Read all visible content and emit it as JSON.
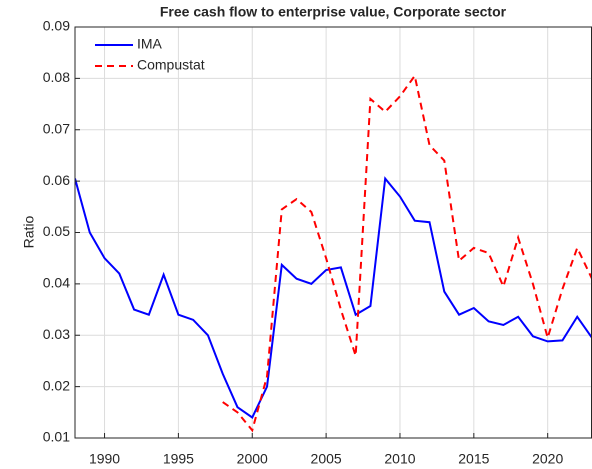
{
  "chart_data": {
    "type": "line",
    "title": "Free cash flow to enterprise value, Corporate sector",
    "y_label": "Ratio",
    "x": [
      1988,
      1989,
      1990,
      1991,
      1992,
      1993,
      1994,
      1995,
      1996,
      1997,
      1998,
      1999,
      2000,
      2001,
      2002,
      2003,
      2004,
      2005,
      2006,
      2007,
      2008,
      2009,
      2010,
      2011,
      2012,
      2013,
      2014,
      2015,
      2016,
      2017,
      2018,
      2019,
      2020,
      2021,
      2022,
      2023
    ],
    "series": [
      {
        "name": "IMA",
        "color": "#0000ff",
        "dash": "solid",
        "values": [
          0.0605,
          0.05,
          0.045,
          0.042,
          0.035,
          0.034,
          0.0418,
          0.034,
          0.033,
          0.03,
          0.0225,
          0.016,
          0.014,
          0.02,
          0.0437,
          0.041,
          0.04,
          0.0427,
          0.0432,
          0.034,
          0.0357,
          0.0605,
          0.057,
          0.0523,
          0.052,
          0.0385,
          0.034,
          0.0353,
          0.0327,
          0.032,
          0.0336,
          0.0298,
          0.0288,
          0.029,
          0.0336,
          0.0295
        ]
      },
      {
        "name": "Compustat",
        "color": "#ff0000",
        "dash": "dashed",
        "values": [
          null,
          null,
          null,
          null,
          null,
          null,
          null,
          null,
          null,
          null,
          0.017,
          0.015,
          0.0115,
          0.022,
          0.0545,
          0.0565,
          0.054,
          0.045,
          0.035,
          0.026,
          0.076,
          0.0735,
          0.0765,
          0.0805,
          0.067,
          0.064,
          0.0445,
          0.047,
          0.046,
          0.0395,
          0.049,
          0.04,
          0.0295,
          0.039,
          0.047,
          0.041
        ]
      }
    ],
    "xlim": [
      1988,
      2023
    ],
    "xticks": [
      1990,
      1995,
      2000,
      2005,
      2010,
      2015,
      2020
    ],
    "ylim": [
      0.01,
      0.09
    ],
    "yticks": [
      0.01,
      0.02,
      0.03,
      0.04,
      0.05,
      0.06,
      0.07,
      0.08,
      0.09
    ],
    "grid": true,
    "legend": "top-left"
  }
}
